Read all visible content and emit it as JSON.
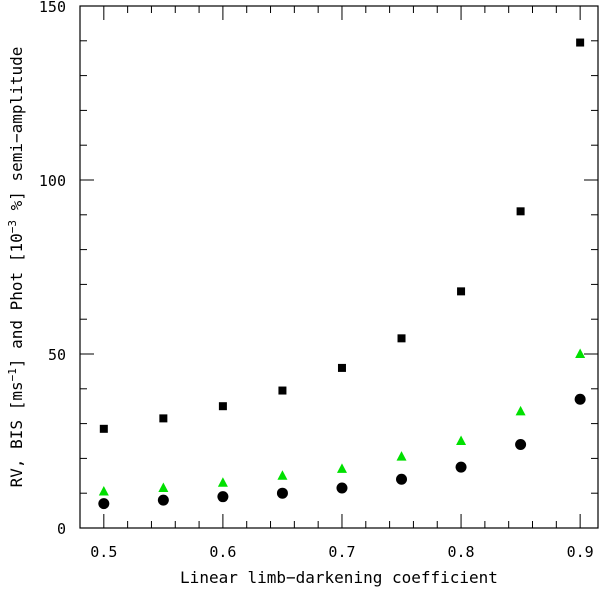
{
  "chart_data": {
    "type": "scatter",
    "title": "",
    "xlabel": "Linear limb−darkening coefficient",
    "ylabel": {
      "prefix": "RV, BIS [ms",
      "unit_sup": "−1",
      "middle": "] and Phot [10",
      "scale_sup": "−3",
      "suffix": " %] semi−amplitude"
    },
    "xlim": [
      0.48,
      0.915
    ],
    "ylim": [
      0,
      150
    ],
    "xticks": [
      "0.5",
      "0.6",
      "0.7",
      "0.8",
      "0.9"
    ],
    "yticks": [
      "0",
      "50",
      "100",
      "150"
    ],
    "x": [
      0.5,
      0.55,
      0.6,
      0.65,
      0.7,
      0.75,
      0.8,
      0.85,
      0.9
    ],
    "series": [
      {
        "name": "square",
        "marker": "square",
        "color": "#000000",
        "values": [
          28.5,
          31.5,
          35,
          39.5,
          46,
          54.5,
          68,
          91,
          139.5
        ]
      },
      {
        "name": "triangle",
        "marker": "triangle",
        "color": "#00e000",
        "values": [
          10.5,
          11.5,
          13,
          15,
          17,
          20.5,
          25,
          33.5,
          50
        ]
      },
      {
        "name": "circle",
        "marker": "circle",
        "color": "#000000",
        "values": [
          7,
          8,
          9,
          10,
          11.5,
          14,
          17.5,
          24,
          37
        ]
      }
    ]
  }
}
